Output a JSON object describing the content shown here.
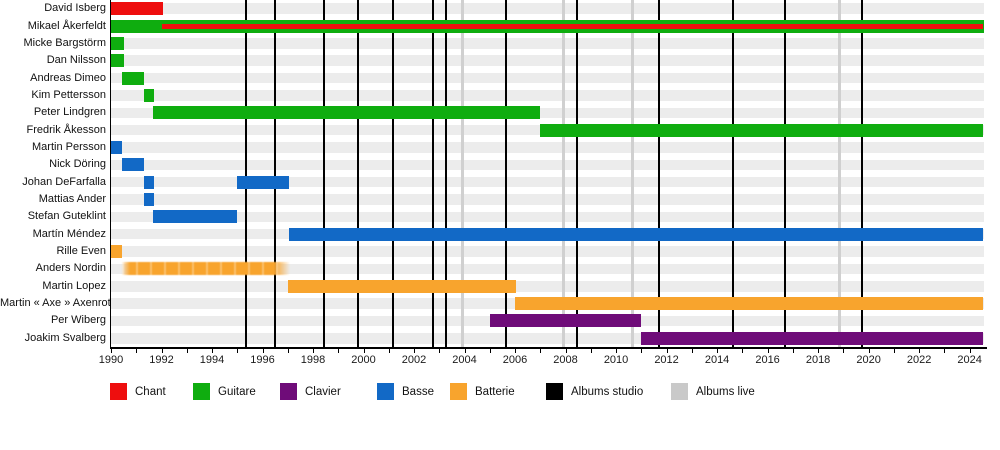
{
  "chart_data": {
    "type": "timeline",
    "title": "",
    "axis": {
      "min": 1990,
      "max": 2024.55,
      "tick_step": 1,
      "label_step": 2,
      "tick_labels": [
        "1990",
        "1992",
        "1994",
        "1996",
        "1998",
        "2000",
        "2002",
        "2004",
        "2006",
        "2008",
        "2010",
        "2012",
        "2014",
        "2016",
        "2018",
        "2020",
        "2022",
        "2024"
      ]
    },
    "colors": {
      "chant": "#ee0e0e",
      "guitare": "#0fad0f",
      "clavier": "#6f0c79",
      "basse": "#1269c6",
      "batterie": "#f8a42d",
      "albums_studio": "#000000",
      "albums_live": "#d0d0d0",
      "row_stripe": "#ececec"
    },
    "legend": [
      {
        "label": "Chant",
        "color": "#ee0e0e"
      },
      {
        "label": "Guitare",
        "color": "#0fad0f"
      },
      {
        "label": "Clavier",
        "color": "#6f0c79"
      },
      {
        "label": "Basse",
        "color": "#1269c6"
      },
      {
        "label": "Batterie",
        "color": "#f8a42d"
      },
      {
        "label": "Albums studio",
        "color": "#000000"
      },
      {
        "label": "Albums live",
        "color": "#c9c9c9"
      }
    ],
    "members": [
      {
        "name": "David Isberg",
        "bars": [
          {
            "role": "chant",
            "from": 1990,
            "to": 1992.05
          }
        ]
      },
      {
        "name": "Mikael Åkerfeldt",
        "bars": [
          {
            "role": "guitare",
            "from": 1990,
            "to": 2024.55
          },
          {
            "role": "chant",
            "from": 1992,
            "to": 2024.55,
            "thin": true
          }
        ]
      },
      {
        "name": "Micke Bargstörm",
        "bars": [
          {
            "role": "guitare",
            "from": 1990,
            "to": 1990.5
          }
        ]
      },
      {
        "name": "Dan Nilsson",
        "bars": [
          {
            "role": "guitare",
            "from": 1990,
            "to": 1990.5
          }
        ]
      },
      {
        "name": "Andreas Dimeo",
        "bars": [
          {
            "role": "guitare",
            "from": 1990.45,
            "to": 1991.3
          }
        ]
      },
      {
        "name": "Kim Pettersson",
        "bars": [
          {
            "role": "guitare",
            "from": 1991.3,
            "to": 1991.7
          }
        ]
      },
      {
        "name": "Peter Lindgren",
        "bars": [
          {
            "role": "guitare",
            "from": 1991.65,
            "to": 2007.0
          }
        ]
      },
      {
        "name": "Fredrik Åkesson",
        "bars": [
          {
            "role": "guitare",
            "from": 2007.0,
            "to": 2024.55
          }
        ]
      },
      {
        "name": "Martin Persson",
        "bars": [
          {
            "role": "basse",
            "from": 1990,
            "to": 1990.45
          }
        ]
      },
      {
        "name": "Nick Döring",
        "bars": [
          {
            "role": "basse",
            "from": 1990.45,
            "to": 1991.3
          }
        ]
      },
      {
        "name": "Johan DeFarfalla",
        "bars": [
          {
            "role": "basse",
            "from": 1991.3,
            "to": 1991.7
          },
          {
            "role": "basse",
            "from": 1995.0,
            "to": 1997.05
          }
        ]
      },
      {
        "name": "Mattias Ander",
        "bars": [
          {
            "role": "basse",
            "from": 1991.3,
            "to": 1991.7
          }
        ]
      },
      {
        "name": "Stefan Guteklint",
        "bars": [
          {
            "role": "basse",
            "from": 1991.65,
            "to": 1995.0
          }
        ]
      },
      {
        "name": "Martín Méndez",
        "bars": [
          {
            "role": "basse",
            "from": 1997.05,
            "to": 2024.55
          }
        ]
      },
      {
        "name": "Rille Even",
        "bars": [
          {
            "role": "batterie",
            "from": 1990,
            "to": 1990.45
          }
        ]
      },
      {
        "name": "Anders Nordin",
        "bars": [
          {
            "role": "batterie",
            "from": 1990.45,
            "to": 1997.1,
            "faded": true
          }
        ]
      },
      {
        "name": "Martin Lopez",
        "bars": [
          {
            "role": "batterie",
            "from": 1997.0,
            "to": 2006.05
          }
        ]
      },
      {
        "name": "Martin « Axe » Axenrot",
        "bars": [
          {
            "role": "batterie",
            "from": 2006.0,
            "to": 2024.55
          }
        ]
      },
      {
        "name": "Per Wiberg",
        "bars": [
          {
            "role": "clavier",
            "from": 2005.0,
            "to": 2011.0
          }
        ]
      },
      {
        "name": "Joakim Svalberg",
        "bars": [
          {
            "role": "clavier",
            "from": 2011.0,
            "to": 2024.55
          }
        ]
      }
    ],
    "albums": {
      "studio_years": [
        1995.35,
        1996.5,
        1998.45,
        1999.8,
        2001.15,
        2002.75,
        2003.25,
        2005.65,
        2008.45,
        2011.7,
        2014.65,
        2016.7,
        2019.75
      ],
      "live_years": [
        2003.9,
        2007.9,
        2010.65,
        2018.85
      ]
    }
  }
}
